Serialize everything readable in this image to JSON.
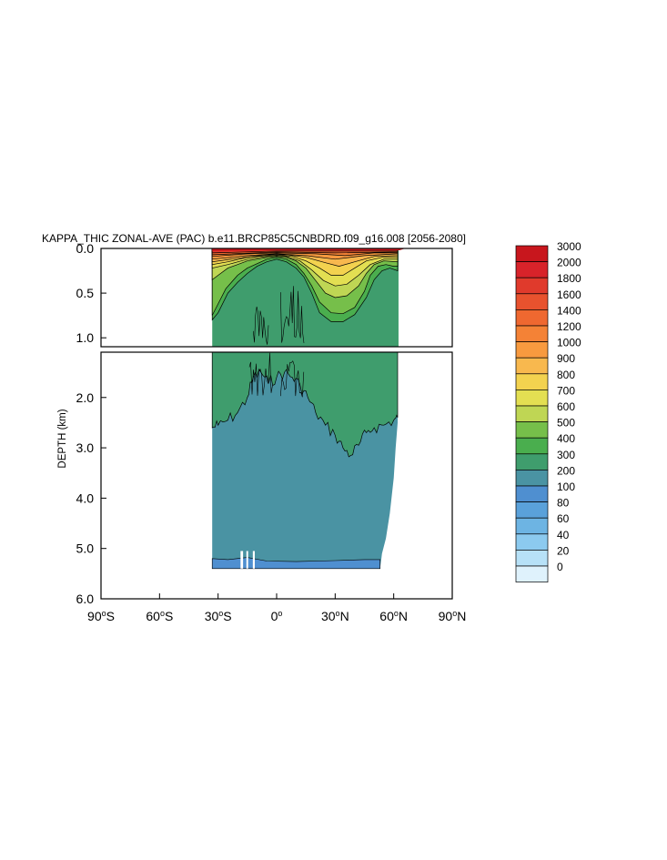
{
  "chart_data": {
    "type": "contour",
    "title": "KAPPA_THIC ZONAL-AVE (PAC) b.e11.BRCP85C5CNBDRD.f09_g16.008 [2056-2080]",
    "ylabel": "DEPTH (km)",
    "upper_panel": {
      "y_range": [
        0.0,
        1.1
      ],
      "y_ticks": [
        "0.0",
        "0.5",
        "1.0"
      ]
    },
    "lower_panel": {
      "y_range": [
        1.1,
        6.0
      ],
      "y_ticks": [
        "2.0",
        "3.0",
        "4.0",
        "5.0",
        "6.0"
      ]
    },
    "x_range": [
      -90,
      90
    ],
    "x_ticks": [
      {
        "value": -90,
        "num": "90",
        "hemi": "S"
      },
      {
        "value": -60,
        "num": "60",
        "hemi": "S"
      },
      {
        "value": -30,
        "num": "30",
        "hemi": "S"
      },
      {
        "value": 0,
        "num": "0",
        "hemi": ""
      },
      {
        "value": 30,
        "num": "30",
        "hemi": "N"
      },
      {
        "value": 60,
        "num": "60",
        "hemi": "N"
      },
      {
        "value": 90,
        "num": "90",
        "hemi": "N"
      }
    ],
    "data_extent": {
      "lat_min": -33,
      "lat_max": 62,
      "depth_max": 5.4
    },
    "levels": [
      {
        "label": "3000",
        "color": "#c8161d"
      },
      {
        "label": "2000",
        "color": "#d8232a"
      },
      {
        "label": "1800",
        "color": "#e03a2c"
      },
      {
        "label": "1600",
        "color": "#e8522e"
      },
      {
        "label": "1400",
        "color": "#ef6830"
      },
      {
        "label": "1200",
        "color": "#f48236"
      },
      {
        "label": "1000",
        "color": "#f89a3f"
      },
      {
        "label": "900",
        "color": "#f8b84e"
      },
      {
        "label": "800",
        "color": "#f3d24f"
      },
      {
        "label": "700",
        "color": "#e3df52"
      },
      {
        "label": "600",
        "color": "#bfd654"
      },
      {
        "label": "500",
        "color": "#76bf4a"
      },
      {
        "label": "400",
        "color": "#4aae4e"
      },
      {
        "label": "300",
        "color": "#3f9d6d"
      },
      {
        "label": "200",
        "color": "#4a93a3"
      },
      {
        "label": "100",
        "color": "#4f8fd0"
      },
      {
        "label": "80",
        "color": "#5aa1da"
      },
      {
        "label": "60",
        "color": "#6db4e3"
      },
      {
        "label": "40",
        "color": "#8ccaef"
      },
      {
        "label": "20",
        "color": "#b7e1f7"
      },
      {
        "label": "0",
        "color": "#dff2fc"
      }
    ]
  }
}
